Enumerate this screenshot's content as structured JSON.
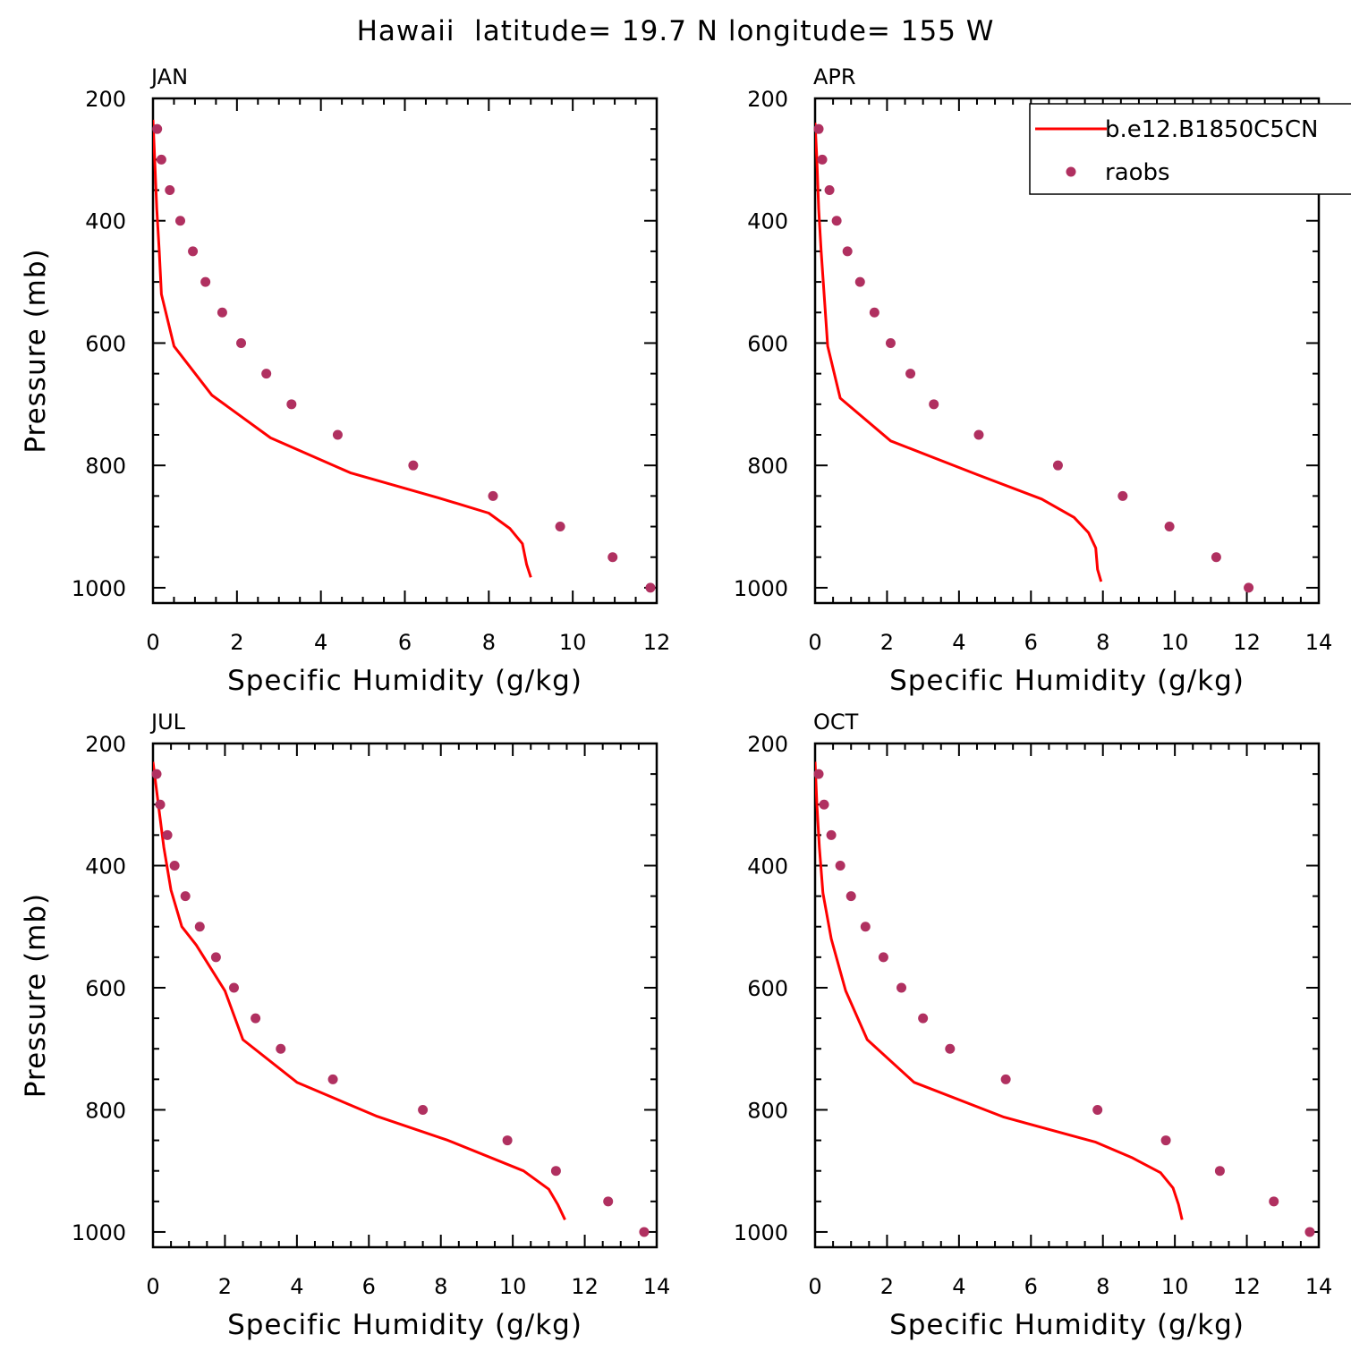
{
  "chart_data": {
    "type": "line",
    "title": "Hawaii  latitude= 19.7 N longitude= 155 W",
    "legend": {
      "placement": "top-right",
      "entries": [
        {
          "name": "b.e12.B1850C5CN",
          "style": "line",
          "color": "#ff0000"
        },
        {
          "name": "raobs",
          "style": "marker",
          "color": "#b03060"
        }
      ]
    },
    "panels": [
      {
        "label": "JAN",
        "xlabel": "Specific Humidity (g/kg)",
        "ylabel": "Pressure (mb)",
        "xlim": [
          0,
          12
        ],
        "ylim": [
          200,
          1025
        ],
        "x_ticks": [
          0,
          2,
          4,
          6,
          8,
          10,
          12
        ],
        "y_ticks": [
          200,
          400,
          600,
          800,
          1000
        ],
        "series": [
          {
            "name": "b.e12.B1850C5CN",
            "type": "line",
            "color": "#ff0000",
            "x": [
              0.0,
              0.04,
              0.09,
              0.15,
              0.2,
              0.5,
              1.4,
              2.8,
              4.7,
              6.8,
              8.0,
              8.5,
              8.8,
              8.9,
              9.0
            ],
            "y": [
              235,
              300,
              380,
              450,
              520,
              605,
              685,
              755,
              812,
              853,
              878,
              903,
              928,
              962,
              983
            ]
          },
          {
            "name": "raobs",
            "type": "scatter",
            "color": "#b03060",
            "x": [
              0.1,
              0.2,
              0.4,
              0.65,
              0.95,
              1.25,
              1.65,
              2.1,
              2.7,
              3.3,
              4.4,
              6.2,
              8.1,
              9.7,
              10.95,
              11.85
            ],
            "y": [
              250,
              300,
              350,
              400,
              450,
              500,
              550,
              600,
              650,
              700,
              750,
              800,
              850,
              900,
              950,
              1000
            ]
          }
        ]
      },
      {
        "label": "APR",
        "xlabel": "Specific Humidity (g/kg)",
        "ylabel": "",
        "xlim": [
          0,
          14
        ],
        "ylim": [
          200,
          1025
        ],
        "x_ticks": [
          0,
          2,
          4,
          6,
          8,
          10,
          12,
          14
        ],
        "y_ticks": [
          200,
          400,
          600,
          800,
          1000
        ],
        "series": [
          {
            "name": "b.e12.B1850C5CN",
            "type": "line",
            "color": "#ff0000",
            "x": [
              0.0,
              0.05,
              0.1,
              0.17,
              0.25,
              0.35,
              0.7,
              2.1,
              4.5,
              6.3,
              7.2,
              7.6,
              7.8,
              7.85,
              7.95
            ],
            "y": [
              240,
              300,
              380,
              450,
              520,
              605,
              690,
              760,
              815,
              855,
              885,
              910,
              935,
              970,
              990
            ]
          },
          {
            "name": "raobs",
            "type": "scatter",
            "color": "#b03060",
            "x": [
              0.1,
              0.2,
              0.4,
              0.6,
              0.9,
              1.25,
              1.65,
              2.1,
              2.65,
              3.3,
              4.55,
              6.75,
              8.55,
              9.85,
              11.15,
              12.05
            ],
            "y": [
              250,
              300,
              350,
              400,
              450,
              500,
              550,
              600,
              650,
              700,
              750,
              800,
              850,
              900,
              950,
              1000
            ]
          }
        ]
      },
      {
        "label": "JUL",
        "xlabel": "Specific Humidity (g/kg)",
        "ylabel": "Pressure (mb)",
        "xlim": [
          0,
          14
        ],
        "ylim": [
          200,
          1025
        ],
        "x_ticks": [
          0,
          2,
          4,
          6,
          8,
          10,
          12,
          14
        ],
        "y_ticks": [
          200,
          400,
          600,
          800,
          1000
        ],
        "series": [
          {
            "name": "b.e12.B1850C5CN",
            "type": "line",
            "color": "#ff0000",
            "x": [
              0.0,
              0.15,
              0.3,
              0.5,
              0.8,
              1.2,
              2.0,
              2.5,
              4.0,
              6.2,
              8.2,
              10.3,
              11.0,
              11.25,
              11.45
            ],
            "y": [
              230,
              300,
              370,
              440,
              500,
              530,
              605,
              685,
              755,
              810,
              850,
              900,
              930,
              955,
              980
            ]
          },
          {
            "name": "raobs",
            "type": "scatter",
            "color": "#b03060",
            "x": [
              0.1,
              0.2,
              0.4,
              0.6,
              0.9,
              1.3,
              1.75,
              2.25,
              2.85,
              3.55,
              5.0,
              7.5,
              9.85,
              11.2,
              12.65,
              13.65
            ],
            "y": [
              250,
              300,
              350,
              400,
              450,
              500,
              550,
              600,
              650,
              700,
              750,
              800,
              850,
              900,
              950,
              1000
            ]
          }
        ]
      },
      {
        "label": "OCT",
        "xlabel": "Specific Humidity (g/kg)",
        "ylabel": "",
        "xlim": [
          0,
          14
        ],
        "ylim": [
          200,
          1025
        ],
        "x_ticks": [
          0,
          2,
          4,
          6,
          8,
          10,
          12,
          14
        ],
        "y_ticks": [
          200,
          400,
          600,
          800,
          1000
        ],
        "series": [
          {
            "name": "b.e12.B1850C5CN",
            "type": "line",
            "color": "#ff0000",
            "x": [
              0.0,
              0.05,
              0.12,
              0.22,
              0.45,
              0.85,
              1.45,
              2.75,
              5.25,
              7.8,
              8.8,
              9.6,
              9.95,
              10.1,
              10.2
            ],
            "y": [
              230,
              300,
              370,
              445,
              520,
              605,
              685,
              755,
              812,
              853,
              878,
              903,
              928,
              955,
              980
            ]
          },
          {
            "name": "raobs",
            "type": "scatter",
            "color": "#b03060",
            "x": [
              0.1,
              0.25,
              0.45,
              0.7,
              1.0,
              1.4,
              1.9,
              2.4,
              3.0,
              3.75,
              5.3,
              7.85,
              9.75,
              11.25,
              12.75,
              13.75
            ],
            "y": [
              250,
              300,
              350,
              400,
              450,
              500,
              550,
              600,
              650,
              700,
              750,
              800,
              850,
              900,
              950,
              1000
            ]
          }
        ]
      }
    ]
  }
}
